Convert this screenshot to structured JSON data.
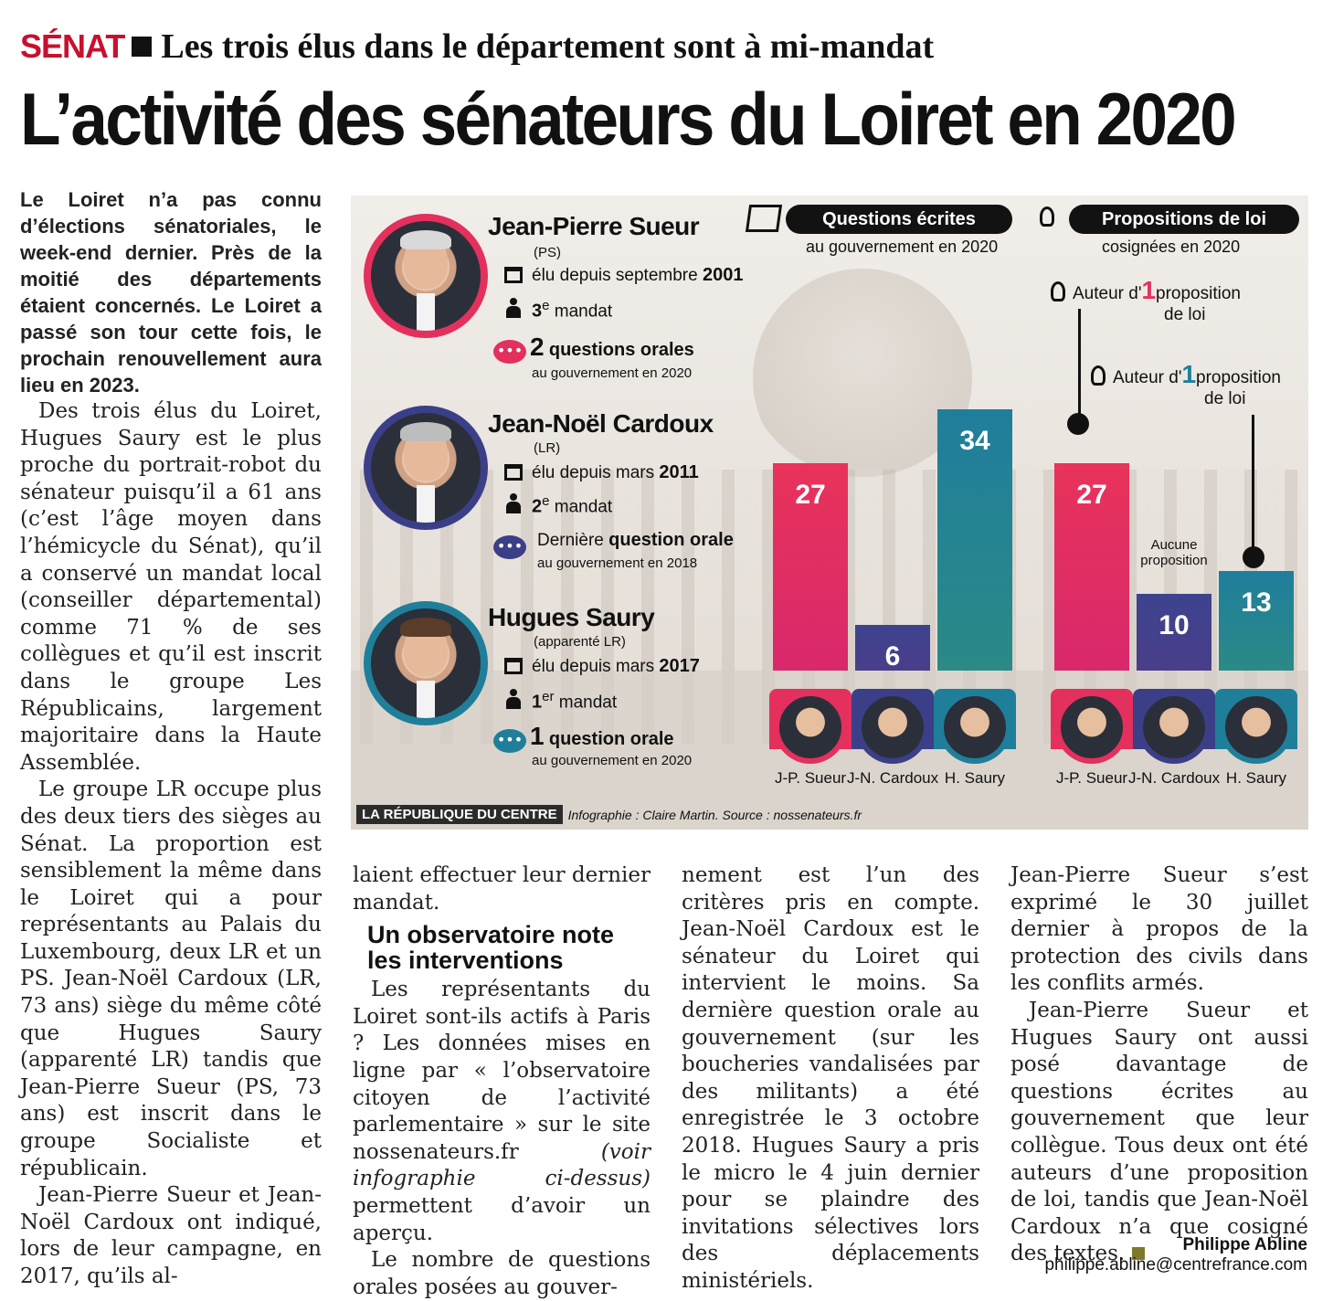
{
  "header": {
    "kicker": "SÉNAT",
    "subtitle": "Les trois élus dans le département sont à mi-mandat",
    "title": "L’activité des sénateurs du Loiret en 2020"
  },
  "colors": {
    "red": "#c8102e",
    "pink": "#e3305d",
    "navy": "#3b3f88",
    "teal": "#1f7f9a",
    "olive": "#7d7a2a"
  },
  "article": {
    "col1": {
      "lead": "Le Loiret n’a pas connu d’élections sénatoriales, le week-end dernier. Près de la moitié des départements étaient concernés. Le Loiret a passé son tour cette fois, le prochain renouvellement aura lieu en 2023.",
      "p1": "Des trois élus du Loiret, Hugues Saury est le plus proche du portrait-robot du sénateur puisqu’il a 61 ans (c’est l’âge moyen dans l’hémicycle du Sénat), qu’il a conservé un mandat local (conseiller départemental) comme 71 % de ses collègues et qu’il est inscrit dans le groupe Les Républicains, largement majoritaire dans la Haute Assemblée.",
      "p2": "Le groupe LR occupe plus des deux tiers des sièges au Sénat. La proportion est sensiblement la même dans le Loiret qui a pour représentants au Palais du Luxembourg, deux LR et un PS. Jean-Noël Cardoux (LR, 73 ans) siège du même côté que Hugues Saury (apparenté LR) tandis que Jean-Pierre Sueur (PS, 73 ans) est inscrit dans le groupe Socialiste et républicain.",
      "p3": "Jean-Pierre Sueur et Jean-Noël Cardoux ont indiqué, lors de leur campagne, en 2017, qu’ils al-"
    },
    "col2": {
      "p0": "laient effectuer leur dernier mandat.",
      "section": "Un observatoire note les interventions",
      "p1a": "Les représentants du Loiret sont-ils actifs à Paris ? Les données mises en ligne par « l’observatoire citoyen de l’activité parlementaire » sur le site nossenateurs.fr",
      "p1b": "(voir infographie ci-dessus)",
      "p1c": "permettent d’avoir un aperçu.",
      "p2": "Le nombre de questions orales posées au gouver-"
    },
    "col3": {
      "p0": "nement est l’un des critères pris en compte. Jean-Noël Cardoux est le sénateur du Loiret qui intervient le moins. Sa dernière question orale au gouvernement (sur les boucheries vandalisées par des militants) a été enregistrée le 3 octobre 2018. Hugues Saury a pris le micro le 4 juin dernier pour se plaindre des invitations sélectives lors des déplacements ministériels."
    },
    "col4": {
      "p0": "Jean-Pierre Sueur s’est exprimé le 30 juillet dernier à propos de la protection des civils dans les conflits armés.",
      "p1": "Jean-Pierre Sueur et Hugues Saury ont aussi posé davantage de questions écrites au gouvernement que leur collègue. Tous deux ont été auteurs d’une proposition de loi, tandis que Jean-Noël Cardoux n’a que cosigné des textes."
    },
    "author": "Philippe Abline",
    "email": "philippe.abline@centrefrance.com"
  },
  "infographic": {
    "senators": [
      {
        "name": "Jean-Pierre Sueur",
        "party": "(PS)",
        "elected_prefix": "élu depuis septembre",
        "elected_year": "2001",
        "mandate_num": "3",
        "mandate_sup": "e",
        "mandate_text": "mandat",
        "oral_num": "2",
        "oral_text": "questions orales",
        "oral_sub": "au gouvernement en 2020"
      },
      {
        "name": "Jean-Noël Cardoux",
        "party": "(LR)",
        "elected_prefix": "élu depuis mars",
        "elected_year": "2011",
        "mandate_num": "2",
        "mandate_sup": "e",
        "mandate_text": "mandat",
        "oral_prefix": "Dernière",
        "oral_text": "question orale",
        "oral_sub": "au gouvernement en 2018"
      },
      {
        "name": "Hugues Saury",
        "party": "(apparenté LR)",
        "elected_prefix": "élu depuis mars",
        "elected_year": "2017",
        "mandate_num": "1",
        "mandate_sup": "er",
        "mandate_text": "mandat",
        "oral_num": "1",
        "oral_text": "question orale",
        "oral_sub": "au gouvernement en 2020"
      }
    ],
    "panel_written": {
      "title": "Questions écrites",
      "subtitle": "au gouvernement en 2020"
    },
    "panel_bills": {
      "title": "Propositions de loi",
      "subtitle": "cosignées en 2020",
      "note_prefix": "Auteur d'",
      "note_num": "1",
      "note_suffix": "proposition",
      "note_line2": "de loi",
      "none_label": "Aucune proposition"
    },
    "labels": [
      "J-P. Sueur",
      "J-N. Cardoux",
      "H. Saury"
    ],
    "credit_brand": "LA RÉPUBLIQUE DU CENTRE",
    "credit_source": "Infographie : Claire Martin. Source : nossenateurs.fr"
  },
  "chart_data": [
    {
      "type": "bar",
      "title": "Questions écrites",
      "subtitle": "au gouvernement en 2020",
      "categories": [
        "J-P. Sueur",
        "J-N. Cardoux",
        "H. Saury"
      ],
      "values": [
        27,
        6,
        34
      ]
    },
    {
      "type": "bar",
      "title": "Propositions de loi",
      "subtitle": "cosignées en 2020",
      "categories": [
        "J-P. Sueur",
        "J-N. Cardoux",
        "H. Saury"
      ],
      "values": [
        27,
        10,
        13
      ]
    }
  ]
}
